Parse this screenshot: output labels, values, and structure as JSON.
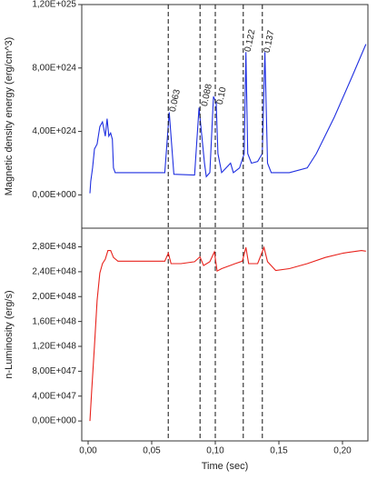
{
  "chart_data": [
    {
      "type": "line",
      "ylabel": "Magnetic density energy (erg/cm^3)",
      "xlim": [
        -0.005,
        0.22
      ],
      "ylim": [
        -2.1e+24,
        1.2e+25
      ],
      "yticks": [
        {
          "value": 0,
          "label": "0,00E+000"
        },
        {
          "value": 4e+24,
          "label": "4,00E+024"
        },
        {
          "value": 8e+24,
          "label": "8,00E+024"
        },
        {
          "value": 1.2e+25,
          "label": "1,20E+025"
        }
      ],
      "x": [
        0.0014,
        0.0021,
        0.0035,
        0.005,
        0.0071,
        0.0092,
        0.0113,
        0.0135,
        0.0149,
        0.0163,
        0.0177,
        0.0191,
        0.0199,
        0.0213,
        0.0376,
        0.0603,
        0.0638,
        0.0674,
        0.0837,
        0.0872,
        0.0894,
        0.0915,
        0.0929,
        0.0957,
        0.0986,
        0.1007,
        0.1021,
        0.105,
        0.112,
        0.1142,
        0.1191,
        0.1227,
        0.1241,
        0.1255,
        0.1284,
        0.1333,
        0.1369,
        0.139,
        0.1411,
        0.144,
        0.1582,
        0.1723,
        0.1794,
        0.1936,
        0.2078,
        0.2184
      ],
      "series": [
        {
          "color": "#1f2fe0",
          "values": [
            1e+23,
            8.6e+23,
            1.7e+24,
            2.9e+24,
            3.2e+24,
            4.3e+24,
            4.6e+24,
            3.7e+24,
            4.8e+24,
            3.7e+24,
            3.9e+24,
            3.5e+24,
            1.7e+24,
            1.4e+24,
            1.4e+24,
            1.4e+24,
            5.2e+24,
            1.3e+24,
            1.25e+24,
            5.5e+24,
            3.7e+24,
            2e+24,
            1.15e+24,
            1.4e+24,
            6.2e+24,
            5.8e+24,
            2.6e+24,
            1.4e+24,
            2e+24,
            1.4e+24,
            1.7e+24,
            2.6e+24,
            9e+24,
            2.6e+24,
            2e+24,
            2.1e+24,
            2.6e+24,
            9e+24,
            2e+24,
            1.4e+24,
            1.4e+24,
            1.7e+24,
            2.6e+24,
            4.9e+24,
            7.5e+24,
            9.5e+24
          ]
        }
      ],
      "annotations": [
        {
          "x": 0.063,
          "label": "0.063"
        },
        {
          "x": 0.088,
          "label": "0.088"
        },
        {
          "x": 0.1,
          "label": "0.10"
        },
        {
          "x": 0.122,
          "label": "0.122"
        },
        {
          "x": 0.137,
          "label": "0.137"
        }
      ]
    },
    {
      "type": "line",
      "ylabel": "n-Luminosity (erg/s)",
      "xlabel": "Time (sec)",
      "xlim": [
        -0.005,
        0.22
      ],
      "ylim": [
        -3.2e+47,
        3.1e+48
      ],
      "xticks": [
        {
          "value": 0,
          "label": "0,00"
        },
        {
          "value": 0.05,
          "label": "0,05"
        },
        {
          "value": 0.1,
          "label": "0,10"
        },
        {
          "value": 0.15,
          "label": "0,15"
        },
        {
          "value": 0.2,
          "label": "0,20"
        }
      ],
      "yticks": [
        {
          "value": 0,
          "label": "0,00E+000"
        },
        {
          "value": 4e+47,
          "label": "4,00E+047"
        },
        {
          "value": 8e+47,
          "label": "8,00E+047"
        },
        {
          "value": 1.2e+48,
          "label": "1,20E+048"
        },
        {
          "value": 1.6e+48,
          "label": "1,60E+048"
        },
        {
          "value": 2e+48,
          "label": "2,00E+048"
        },
        {
          "value": 2.4e+48,
          "label": "2,40E+048"
        },
        {
          "value": 2.8e+48,
          "label": "2,80E+048"
        }
      ],
      "x": [
        0.0014,
        0.0028,
        0.005,
        0.0071,
        0.0092,
        0.0113,
        0.0135,
        0.0156,
        0.0177,
        0.0199,
        0.0234,
        0.0376,
        0.0603,
        0.0631,
        0.0652,
        0.073,
        0.0837,
        0.0879,
        0.0908,
        0.0957,
        0.0993,
        0.1014,
        0.105,
        0.1156,
        0.1213,
        0.1241,
        0.1262,
        0.1333,
        0.1383,
        0.1411,
        0.1475,
        0.1582,
        0.1723,
        0.1865,
        0.2007,
        0.2149,
        0.2184
      ],
      "series": [
        {
          "color": "#e8221c",
          "values": [
            0,
            4.8e+47,
            1.21e+48,
            1.94e+48,
            2.38e+48,
            2.53e+48,
            2.6e+48,
            2.74e+48,
            2.74e+48,
            2.63e+48,
            2.57e+48,
            2.57e+48,
            2.57e+48,
            2.7e+48,
            2.53e+48,
            2.53e+48,
            2.56e+48,
            2.64e+48,
            2.5e+48,
            2.56e+48,
            2.72e+48,
            2.41e+48,
            2.45e+48,
            2.53e+48,
            2.57e+48,
            2.79e+48,
            2.53e+48,
            2.53e+48,
            2.79e+48,
            2.56e+48,
            2.42e+48,
            2.45e+48,
            2.53e+48,
            2.63e+48,
            2.7e+48,
            2.74e+48,
            2.73e+48
          ]
        }
      ]
    }
  ]
}
